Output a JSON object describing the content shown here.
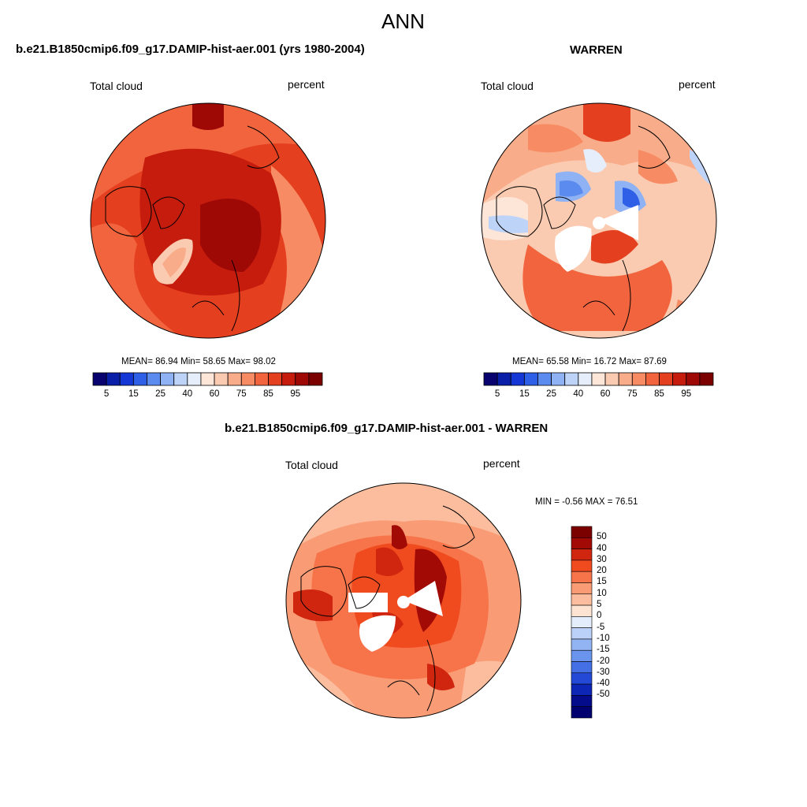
{
  "figure": {
    "title": "ANN"
  },
  "panel_left": {
    "title": "b.e21.B1850cmip6.f09_g17.DAMIP-hist-aer.001 (yrs 1980-2004)",
    "variable": "Total cloud",
    "units": "percent",
    "stats": "MEAN=  86.94  Min=  58.65  Max=  98.02"
  },
  "panel_right": {
    "title": "WARREN",
    "variable": "Total cloud",
    "units": "percent",
    "stats": "MEAN=  65.58  Min=  16.72  Max=  87.69"
  },
  "panel_diff": {
    "title": "b.e21.B1850cmip6.f09_g17.DAMIP-hist-aer.001 - WARREN",
    "variable": "Total cloud",
    "units": "percent",
    "stats": "MIN =  -0.56 MAX =  76.51"
  },
  "colorbar_abs": {
    "colors": [
      "#08036e",
      "#0a1fa8",
      "#1537d6",
      "#2e5fe6",
      "#5c8bef",
      "#8fb2f5",
      "#bdd3f8",
      "#e6eefb",
      "#fde6d8",
      "#fbcbb1",
      "#f9ac8a",
      "#f78b63",
      "#f2643d",
      "#e43f1e",
      "#c51c0e",
      "#9e0906",
      "#7b0000"
    ],
    "tick_labels": [
      "5",
      "15",
      "25",
      "40",
      "60",
      "75",
      "85",
      "95"
    ]
  },
  "colorbar_diff": {
    "colors": [
      "#7b0000",
      "#a20a06",
      "#d0260f",
      "#f04a1f",
      "#f7744a",
      "#f99b74",
      "#fbbd9e",
      "#fde3d2",
      "#e3edfb",
      "#bcd1f7",
      "#93b4f3",
      "#6b94ee",
      "#456fe4",
      "#2449d6",
      "#0e26b5",
      "#050c8c",
      "#010270"
    ],
    "tick_labels": [
      "50",
      "40",
      "30",
      "20",
      "15",
      "10",
      "5",
      "0",
      "-5",
      "-10",
      "-15",
      "-20",
      "-30",
      "-40",
      "-50"
    ]
  },
  "map_data": {
    "projection": "north polar stereographic",
    "field": "Total cloud fraction (annual mean)",
    "panels": [
      "model",
      "observations (WARREN)",
      "difference"
    ],
    "missing_data_color": "#ffffff"
  }
}
